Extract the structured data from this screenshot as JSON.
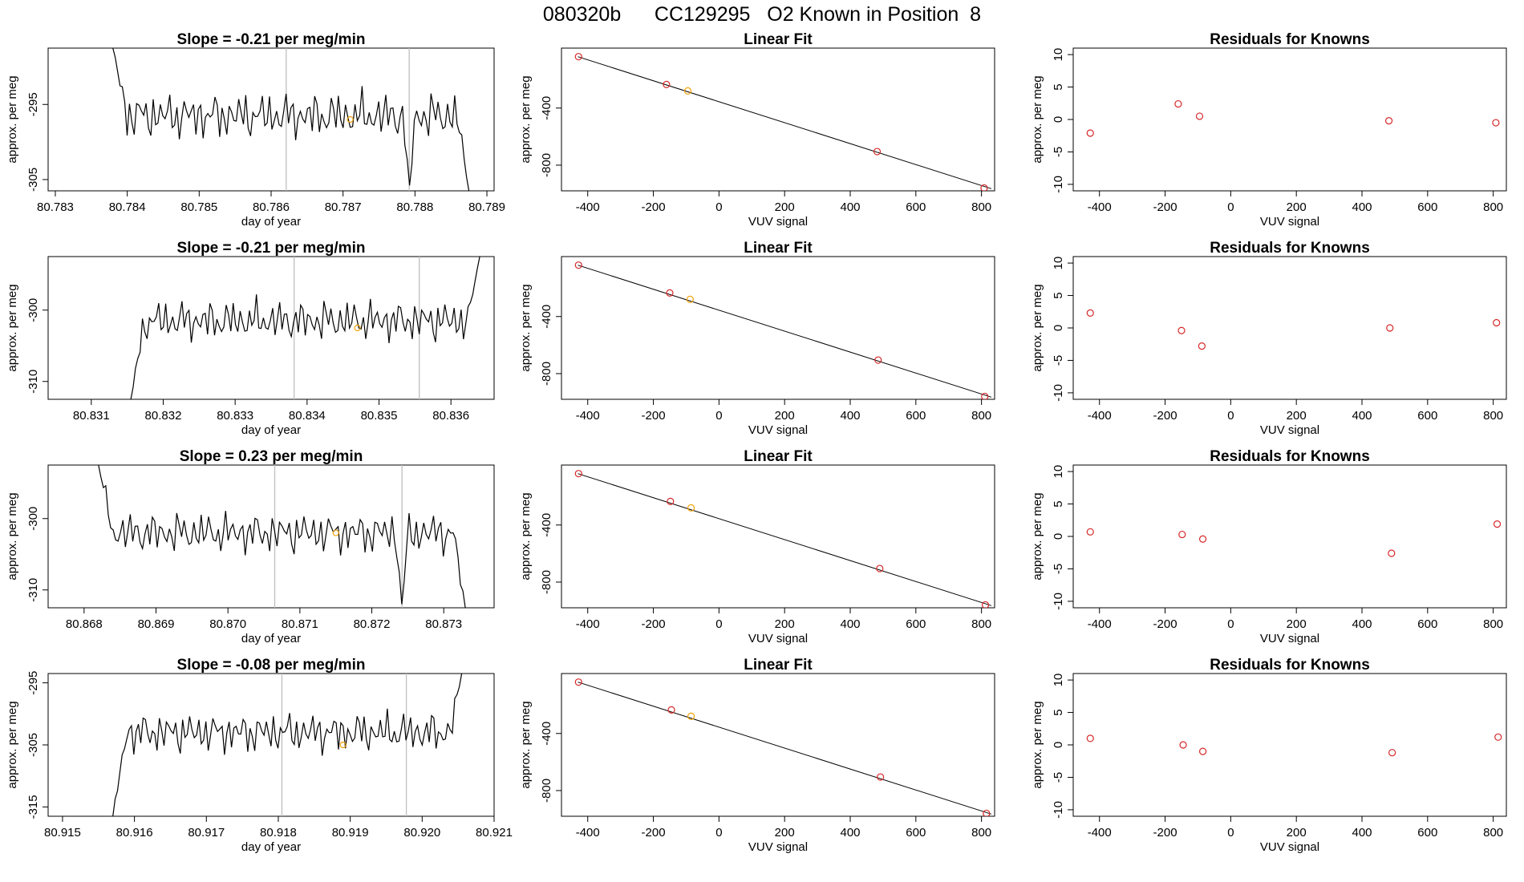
{
  "title": "080320b      CC129295   O2 Known in Position  8",
  "colors": {
    "trace": "#000000",
    "marker_red": "#d62728",
    "marker_orange": "#f0a30a",
    "vline": "#bfbfbf",
    "frame": "#000000"
  },
  "chart_data": [
    {
      "type": "line",
      "title": "Slope =  -0.21  per meg/min",
      "xlabel": "day of year",
      "ylabel": "approx. per meg",
      "xlim": [
        80.7829,
        80.7891
      ],
      "ylim": [
        -306.5,
        -287.5
      ],
      "x_ticks": [
        "80.783",
        "80.784",
        "80.785",
        "80.786",
        "80.787",
        "80.788",
        "80.789"
      ],
      "y_ticks": [
        -305,
        -295
      ],
      "vlines": [
        80.78621,
        80.78792
      ],
      "marker": {
        "x": 80.7871,
        "y": -297
      },
      "series": [
        {
          "x_start": 80.7838,
          "x_end": 80.78875,
          "mean": -296.5,
          "amp": 3.2,
          "start_y": -287.5,
          "end_y": -306.5,
          "dip": {
            "x": 80.78792,
            "y": -306.5
          }
        }
      ]
    },
    {
      "type": "scatter",
      "title": "Linear Fit",
      "xlabel": "VUV signal",
      "ylabel": "approx. per meg",
      "xlim": [
        -480,
        840
      ],
      "ylim": [
        -980,
        20
      ],
      "x_ticks": [
        -400,
        -200,
        0,
        200,
        400,
        600,
        800
      ],
      "y_ticks": [
        -400,
        -800
      ],
      "line": {
        "x": [
          -430,
          830
        ],
        "y": [
          -40,
          -965
        ]
      },
      "points": [
        {
          "x": -428,
          "y": -40
        },
        {
          "x": -160,
          "y": -235
        },
        {
          "x": -95,
          "y": -280,
          "c": "orange"
        },
        {
          "x": 482,
          "y": -705
        },
        {
          "x": 808,
          "y": -960
        }
      ]
    },
    {
      "type": "scatter",
      "title": "Residuals for Knowns",
      "xlabel": "VUV signal",
      "ylabel": "approx. per meg",
      "xlim": [
        -480,
        840
      ],
      "ylim": [
        -11,
        11
      ],
      "x_ticks": [
        -400,
        -200,
        0,
        200,
        400,
        600,
        800
      ],
      "y_ticks": [
        -10,
        -5,
        0,
        5,
        10
      ],
      "points": [
        {
          "x": -428,
          "y": -2.1
        },
        {
          "x": -160,
          "y": 2.4
        },
        {
          "x": -95,
          "y": 0.5
        },
        {
          "x": 482,
          "y": -0.2
        },
        {
          "x": 808,
          "y": -0.5
        }
      ]
    },
    {
      "type": "line",
      "title": "Slope =  -0.21  per meg/min",
      "xlabel": "day of year",
      "ylabel": "approx. per meg",
      "xlim": [
        80.8304,
        80.8366
      ],
      "ylim": [
        -312.5,
        -292.5
      ],
      "x_ticks": [
        "80.831",
        "80.832",
        "80.833",
        "80.834",
        "80.835",
        "80.836"
      ],
      "y_ticks": [
        -310,
        -300
      ],
      "vlines": [
        80.83382,
        80.83556
      ],
      "marker": {
        "x": 80.8347,
        "y": -302.5
      },
      "series": [
        {
          "x_start": 80.83155,
          "x_end": 80.8364,
          "mean": -301.5,
          "amp": 3.0,
          "start_y": -312.5,
          "end_y": -292.5
        }
      ]
    },
    {
      "type": "scatter",
      "title": "Linear Fit",
      "xlabel": "VUV signal",
      "ylabel": "approx. per meg",
      "xlim": [
        -480,
        840
      ],
      "ylim": [
        -980,
        20
      ],
      "x_ticks": [
        -400,
        -200,
        0,
        200,
        400,
        600,
        800
      ],
      "y_ticks": [
        -400,
        -800
      ],
      "line": {
        "x": [
          -430,
          830
        ],
        "y": [
          -40,
          -965
        ]
      },
      "points": [
        {
          "x": -428,
          "y": -40
        },
        {
          "x": -150,
          "y": -235
        },
        {
          "x": -88,
          "y": -280,
          "c": "orange"
        },
        {
          "x": 485,
          "y": -705
        },
        {
          "x": 810,
          "y": -960
        }
      ]
    },
    {
      "type": "scatter",
      "title": "Residuals for Knowns",
      "xlabel": "VUV signal",
      "ylabel": "approx. per meg",
      "xlim": [
        -480,
        840
      ],
      "ylim": [
        -11,
        11
      ],
      "x_ticks": [
        -400,
        -200,
        0,
        200,
        400,
        600,
        800
      ],
      "y_ticks": [
        -10,
        -5,
        0,
        5,
        10
      ],
      "points": [
        {
          "x": -428,
          "y": 2.3
        },
        {
          "x": -150,
          "y": -0.4
        },
        {
          "x": -88,
          "y": -2.8
        },
        {
          "x": 485,
          "y": 0.0
        },
        {
          "x": 810,
          "y": 0.8
        }
      ]
    },
    {
      "type": "line",
      "title": "Slope =  0.23  per meg/min",
      "xlabel": "day of year",
      "ylabel": "approx. per meg",
      "xlim": [
        80.8675,
        80.8737
      ],
      "ylim": [
        -312.5,
        -292.5
      ],
      "x_ticks": [
        "80.868",
        "80.869",
        "80.870",
        "80.871",
        "80.872",
        "80.873"
      ],
      "y_ticks": [
        -310,
        -300
      ],
      "vlines": [
        80.87065,
        80.87242
      ],
      "marker": {
        "x": 80.8715,
        "y": -302
      },
      "series": [
        {
          "x_start": 80.8682,
          "x_end": 80.8733,
          "mean": -302,
          "amp": 3.0,
          "start_y": -292.5,
          "end_y": -312.5,
          "dip": {
            "x": 80.87242,
            "y": -312.5
          }
        }
      ]
    },
    {
      "type": "scatter",
      "title": "Linear Fit",
      "xlabel": "VUV signal",
      "ylabel": "approx. per meg",
      "xlim": [
        -480,
        840
      ],
      "ylim": [
        -980,
        20
      ],
      "x_ticks": [
        -400,
        -200,
        0,
        200,
        400,
        600,
        800
      ],
      "y_ticks": [
        -400,
        -800
      ],
      "line": {
        "x": [
          -430,
          830
        ],
        "y": [
          -40,
          -965
        ]
      },
      "points": [
        {
          "x": -428,
          "y": -40
        },
        {
          "x": -148,
          "y": -235
        },
        {
          "x": -85,
          "y": -280,
          "c": "orange"
        },
        {
          "x": 490,
          "y": -705
        },
        {
          "x": 812,
          "y": -960
        }
      ]
    },
    {
      "type": "scatter",
      "title": "Residuals for Knowns",
      "xlabel": "VUV signal",
      "ylabel": "approx. per meg",
      "xlim": [
        -480,
        840
      ],
      "ylim": [
        -11,
        11
      ],
      "x_ticks": [
        -400,
        -200,
        0,
        200,
        400,
        600,
        800
      ],
      "y_ticks": [
        -10,
        -5,
        0,
        5,
        10
      ],
      "points": [
        {
          "x": -428,
          "y": 0.7
        },
        {
          "x": -148,
          "y": 0.3
        },
        {
          "x": -85,
          "y": -0.4
        },
        {
          "x": 490,
          "y": -2.6
        },
        {
          "x": 812,
          "y": 1.9
        }
      ]
    },
    {
      "type": "line",
      "title": "Slope =  -0.08  per meg/min",
      "xlabel": "day of year",
      "ylabel": "approx. per meg",
      "xlim": [
        80.9148,
        80.921
      ],
      "ylim": [
        -316.5,
        -293.5
      ],
      "x_ticks": [
        "80.915",
        "80.916",
        "80.917",
        "80.918",
        "80.919",
        "80.920",
        "80.921"
      ],
      "y_ticks": [
        -315,
        -305,
        -295
      ],
      "vlines": [
        80.91805,
        80.91978
      ],
      "marker": {
        "x": 80.9189,
        "y": -305
      },
      "series": [
        {
          "x_start": 80.9157,
          "x_end": 80.92055,
          "mean": -303,
          "amp": 3.4,
          "start_y": -316.5,
          "end_y": -293.5
        }
      ]
    },
    {
      "type": "scatter",
      "title": "Linear Fit",
      "xlabel": "VUV signal",
      "ylabel": "approx. per meg",
      "xlim": [
        -480,
        840
      ],
      "ylim": [
        -980,
        20
      ],
      "x_ticks": [
        -400,
        -200,
        0,
        200,
        400,
        600,
        800
      ],
      "y_ticks": [
        -400,
        -800
      ],
      "line": {
        "x": [
          -430,
          830
        ],
        "y": [
          -40,
          -965
        ]
      },
      "points": [
        {
          "x": -428,
          "y": -40
        },
        {
          "x": -145,
          "y": -235
        },
        {
          "x": -85,
          "y": -280,
          "c": "orange"
        },
        {
          "x": 492,
          "y": -705
        },
        {
          "x": 815,
          "y": -960
        }
      ]
    },
    {
      "type": "scatter",
      "title": "Residuals for Knowns",
      "xlabel": "VUV signal",
      "ylabel": "approx. per meg",
      "xlim": [
        -480,
        840
      ],
      "ylim": [
        -11,
        11
      ],
      "x_ticks": [
        -400,
        -200,
        0,
        200,
        400,
        600,
        800
      ],
      "y_ticks": [
        -10,
        -5,
        0,
        5,
        10
      ],
      "points": [
        {
          "x": -428,
          "y": 1.0
        },
        {
          "x": -145,
          "y": 0.0
        },
        {
          "x": -85,
          "y": -1.0
        },
        {
          "x": 492,
          "y": -1.2
        },
        {
          "x": 815,
          "y": 1.2
        }
      ]
    }
  ]
}
